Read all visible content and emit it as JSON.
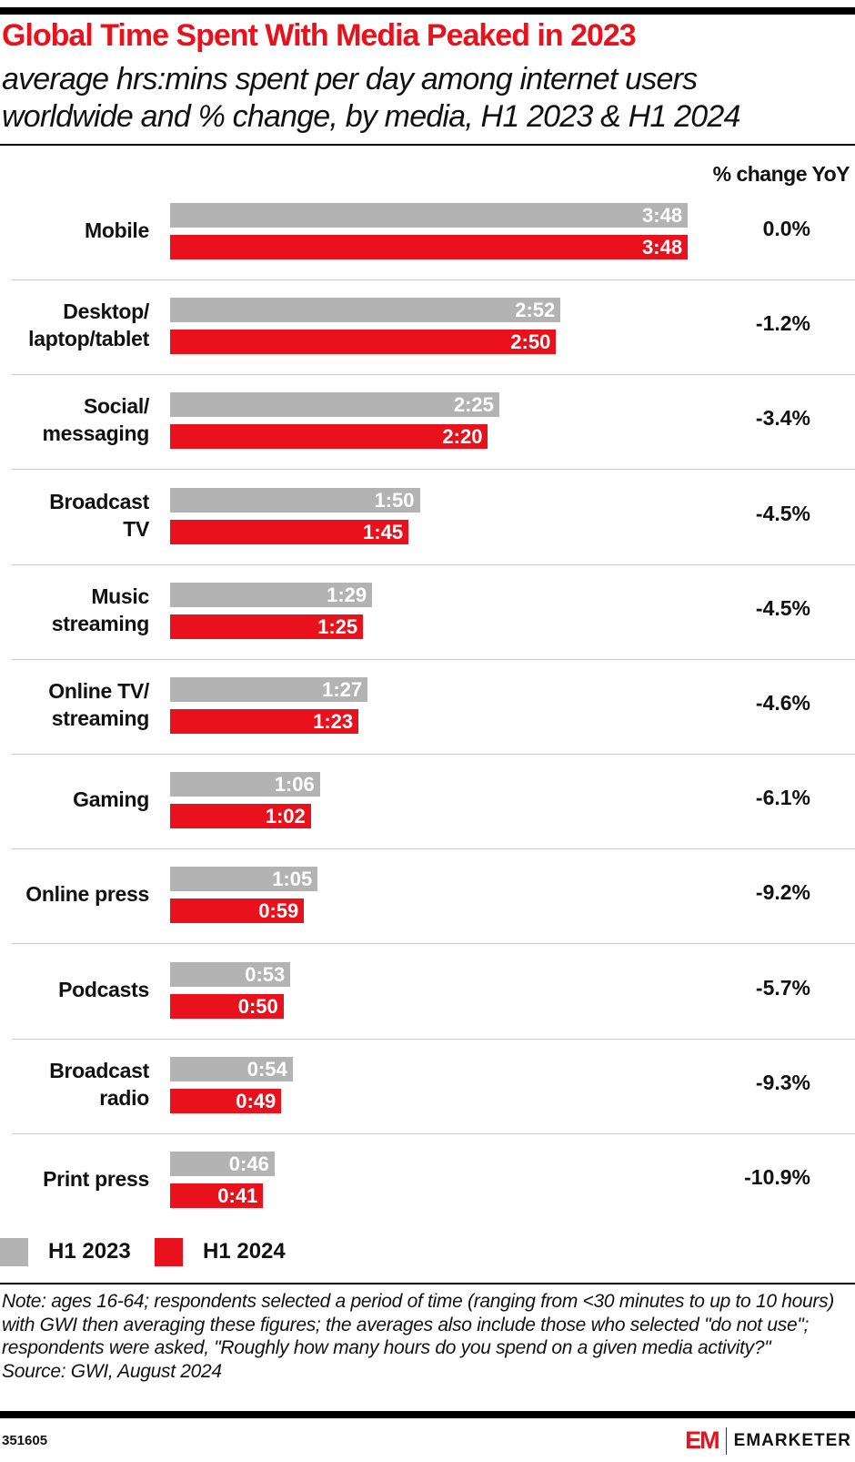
{
  "title": "Global Time Spent With Media Peaked in 2023",
  "subtitle_lines": [
    "average hrs:mins spent per day among internet users",
    "worldwide and % change, by media, H1 2023 & H1 2024"
  ],
  "colors": {
    "h1_2023": "#b3b3b3",
    "h1_2024": "#e8111c",
    "title": "#e8111c"
  },
  "chart_data": {
    "type": "bar",
    "orientation": "horizontal",
    "categories": [
      [
        "Mobile"
      ],
      [
        "Desktop/",
        "laptop/tablet"
      ],
      [
        "Social/",
        "messaging"
      ],
      [
        "Broadcast",
        "TV"
      ],
      [
        "Music",
        "streaming"
      ],
      [
        "Online TV/",
        "streaming"
      ],
      [
        "Gaming"
      ],
      [
        "Online press"
      ],
      [
        "Podcasts"
      ],
      [
        "Broadcast",
        "radio"
      ],
      [
        "Print press"
      ]
    ],
    "series": [
      {
        "name": "H1 2023",
        "values": [
          "3:48",
          "2:52",
          "2:25",
          "1:50",
          "1:29",
          "1:27",
          "1:06",
          "1:05",
          "0:53",
          "0:54",
          "0:46"
        ]
      },
      {
        "name": "H1 2024",
        "values": [
          "3:48",
          "2:50",
          "2:20",
          "1:45",
          "1:25",
          "1:23",
          "1:02",
          "0:59",
          "0:50",
          "0:49",
          "0:41"
        ]
      }
    ],
    "pct_change_header": "% change YoY",
    "pct_change": [
      "0.0%",
      "-1.2%",
      "-3.4%",
      "-4.5%",
      "-4.5%",
      "-4.6%",
      "-6.1%",
      "-9.2%",
      "-5.7%",
      "-9.3%",
      "-10.9%"
    ],
    "legend": [
      "H1 2023",
      "H1 2024"
    ],
    "legend_position": "bottom-left",
    "grid": false
  },
  "note": "Note: ages 16-64; respondents selected a period of time (ranging from <30 minutes to up to 10 hours) with GWI then averaging these figures; the averages also include those who selected \"do not use\"; respondents were asked, \"Roughly how many hours do you spend on a given media activity?\"",
  "source": "Source: GWI, August 2024",
  "chart_id": "351605",
  "brand": {
    "logo_mark": "EM",
    "name": "EMARKETER"
  }
}
